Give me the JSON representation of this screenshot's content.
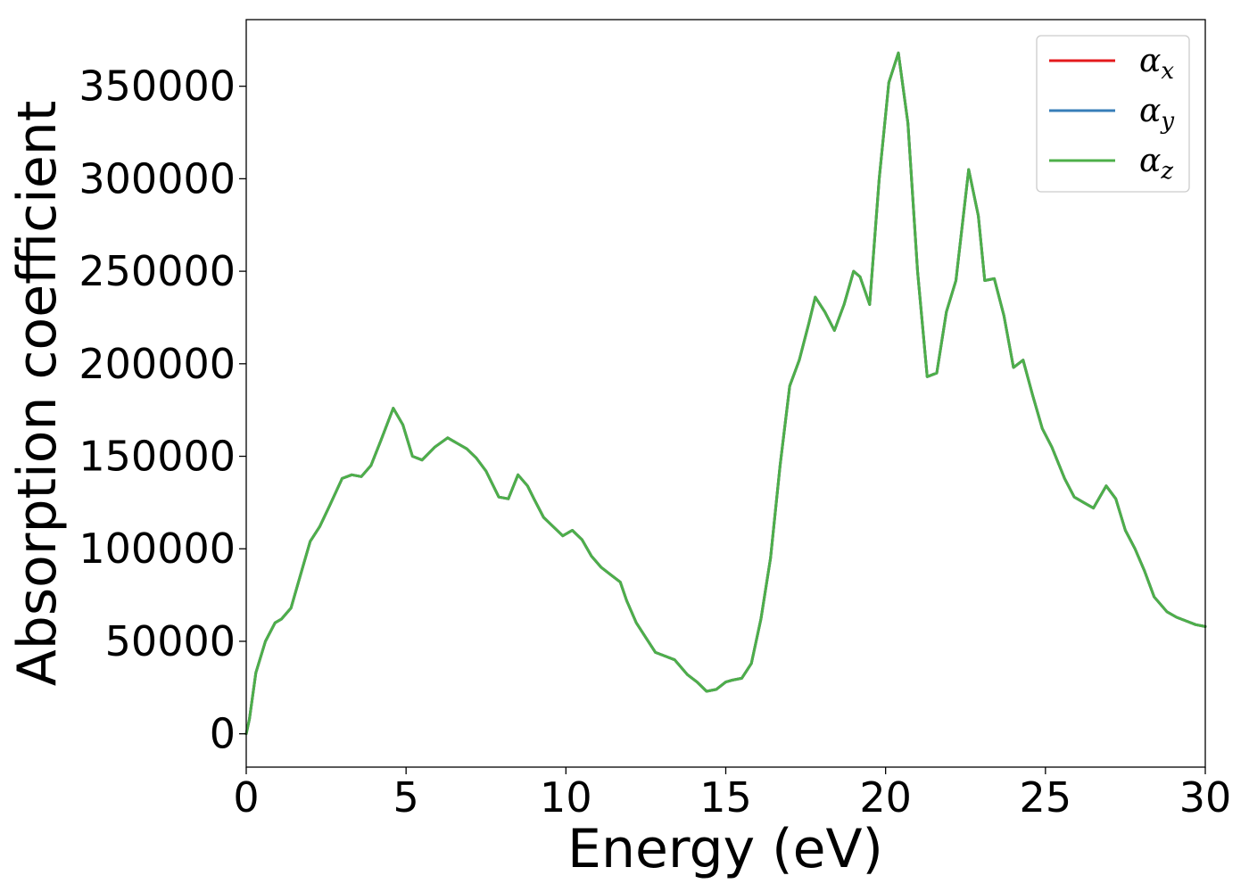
{
  "chart_data": {
    "type": "line",
    "xlabel": "Energy (eV)",
    "ylabel": "Absorption coefficient",
    "xlim": [
      0,
      30
    ],
    "ylim": [
      -18000,
      386000
    ],
    "xticks": [
      "0",
      "5",
      "10",
      "15",
      "20",
      "25",
      "30"
    ],
    "yticks": [
      "0",
      "50000",
      "100000",
      "150000",
      "200000",
      "250000",
      "300000",
      "350000"
    ],
    "grid": false,
    "legend_placement": "top-right",
    "series": [
      {
        "name": "α",
        "sub": "x",
        "color": "#e41a1c"
      },
      {
        "name": "α",
        "sub": "y",
        "color": "#377eb8"
      },
      {
        "name": "α",
        "sub": "z",
        "color": "#4daf4a"
      }
    ],
    "x": [
      0,
      0.1,
      0.3,
      0.6,
      0.9,
      1.1,
      1.4,
      1.7,
      2.0,
      2.3,
      2.6,
      3.0,
      3.3,
      3.6,
      3.9,
      4.2,
      4.6,
      4.9,
      5.2,
      5.5,
      5.9,
      6.3,
      6.6,
      6.9,
      7.2,
      7.5,
      7.9,
      8.2,
      8.5,
      8.8,
      9.0,
      9.3,
      9.6,
      9.9,
      10.2,
      10.5,
      10.8,
      11.1,
      11.4,
      11.7,
      11.9,
      12.2,
      12.5,
      12.8,
      13.1,
      13.4,
      13.8,
      14.1,
      14.4,
      14.7,
      15.0,
      15.2,
      15.5,
      15.8,
      16.1,
      16.4,
      16.7,
      17.0,
      17.3,
      17.6,
      17.8,
      18.1,
      18.4,
      18.7,
      19.0,
      19.2,
      19.5,
      19.8,
      20.1,
      20.4,
      20.7,
      21.0,
      21.3,
      21.6,
      21.9,
      22.2,
      22.6,
      22.9,
      23.1,
      23.4,
      23.7,
      24.0,
      24.3,
      24.6,
      24.9,
      25.2,
      25.6,
      25.9,
      26.2,
      26.5,
      26.9,
      27.2,
      27.5,
      27.8,
      28.1,
      28.4,
      28.8,
      29.1,
      29.4,
      29.7,
      30.0
    ],
    "y": [
      0,
      8000,
      33000,
      50000,
      60000,
      62000,
      68000,
      86000,
      104000,
      112000,
      123000,
      138000,
      140000,
      139000,
      145000,
      158000,
      176000,
      167000,
      150000,
      148000,
      155000,
      160000,
      157000,
      154000,
      149000,
      142000,
      128000,
      127000,
      140000,
      134000,
      127000,
      117000,
      112000,
      107000,
      110000,
      105000,
      96000,
      90000,
      86000,
      82000,
      72000,
      60000,
      52000,
      44000,
      42000,
      40000,
      32000,
      28000,
      23000,
      24000,
      28000,
      29000,
      30000,
      38000,
      62000,
      95000,
      145000,
      188000,
      202000,
      222000,
      236000,
      228000,
      218000,
      232000,
      250000,
      247000,
      232000,
      300000,
      352000,
      368000,
      330000,
      250000,
      193000,
      195000,
      228000,
      245000,
      305000,
      280000,
      245000,
      246000,
      226000,
      198000,
      202000,
      183000,
      165000,
      155000,
      138000,
      128000,
      125000,
      122000,
      134000,
      127000,
      110000,
      100000,
      88000,
      74000,
      66000,
      63000,
      61000,
      59000,
      58000
    ]
  }
}
